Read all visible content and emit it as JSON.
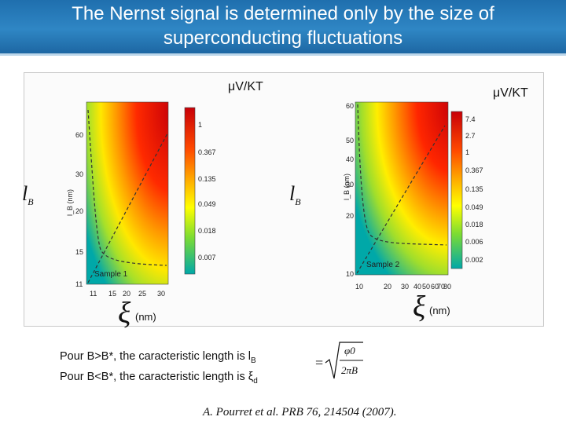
{
  "title": "The Nernst signal is determined only by the size of superconducting fluctuations",
  "panels": [
    {
      "unit_label": "μV/KT",
      "y_symbol": "l",
      "y_symbol_sub": "B",
      "y_axis_label": "l_B (nm)",
      "x_symbol": "ξ",
      "x_unit": "(nm)",
      "y_ticks": [
        "11",
        "15",
        "20",
        "30",
        "60"
      ],
      "x_ticks": [
        "11",
        "15",
        "20",
        "25",
        "30"
      ],
      "colorbar_ticks": [
        "1",
        "0.367",
        "0.135",
        "0.049",
        "0.018",
        "0.007"
      ],
      "sample_label": "Sample 1"
    },
    {
      "unit_label": "μV/KT",
      "y_symbol": "l",
      "y_symbol_sub": "B",
      "y_axis_label": "l_B (nm)",
      "x_symbol": "ξ",
      "x_unit": "(nm)",
      "y_ticks": [
        "10",
        "20",
        "30",
        "40",
        "50",
        "60"
      ],
      "x_ticks": [
        "10",
        "20",
        "30",
        "40",
        "50",
        "60",
        "70",
        "80"
      ],
      "colorbar_ticks": [
        "7.4",
        "2.7",
        "1",
        "0.367",
        "0.135",
        "0.049",
        "0.018",
        "0.006",
        "0.002"
      ],
      "sample_label": "Sample 2"
    }
  ],
  "caption": {
    "line1": "Pour B>B*, the caracteristic length  is l",
    "line1_sub": "B",
    "line2": "Pour B<B*, the caracteristic length  is ξ",
    "line2_sub": "d",
    "formula_eq": "=",
    "formula_num": "φ0",
    "formula_den": "2πB"
  },
  "reference": "A. Pourret et al. PRB 76, 214504 (2007).",
  "colors": {
    "header": "#2f86c4",
    "map_high": "#d4000a",
    "map_mid": "#ffe000",
    "map_low": "#00a5a5"
  }
}
